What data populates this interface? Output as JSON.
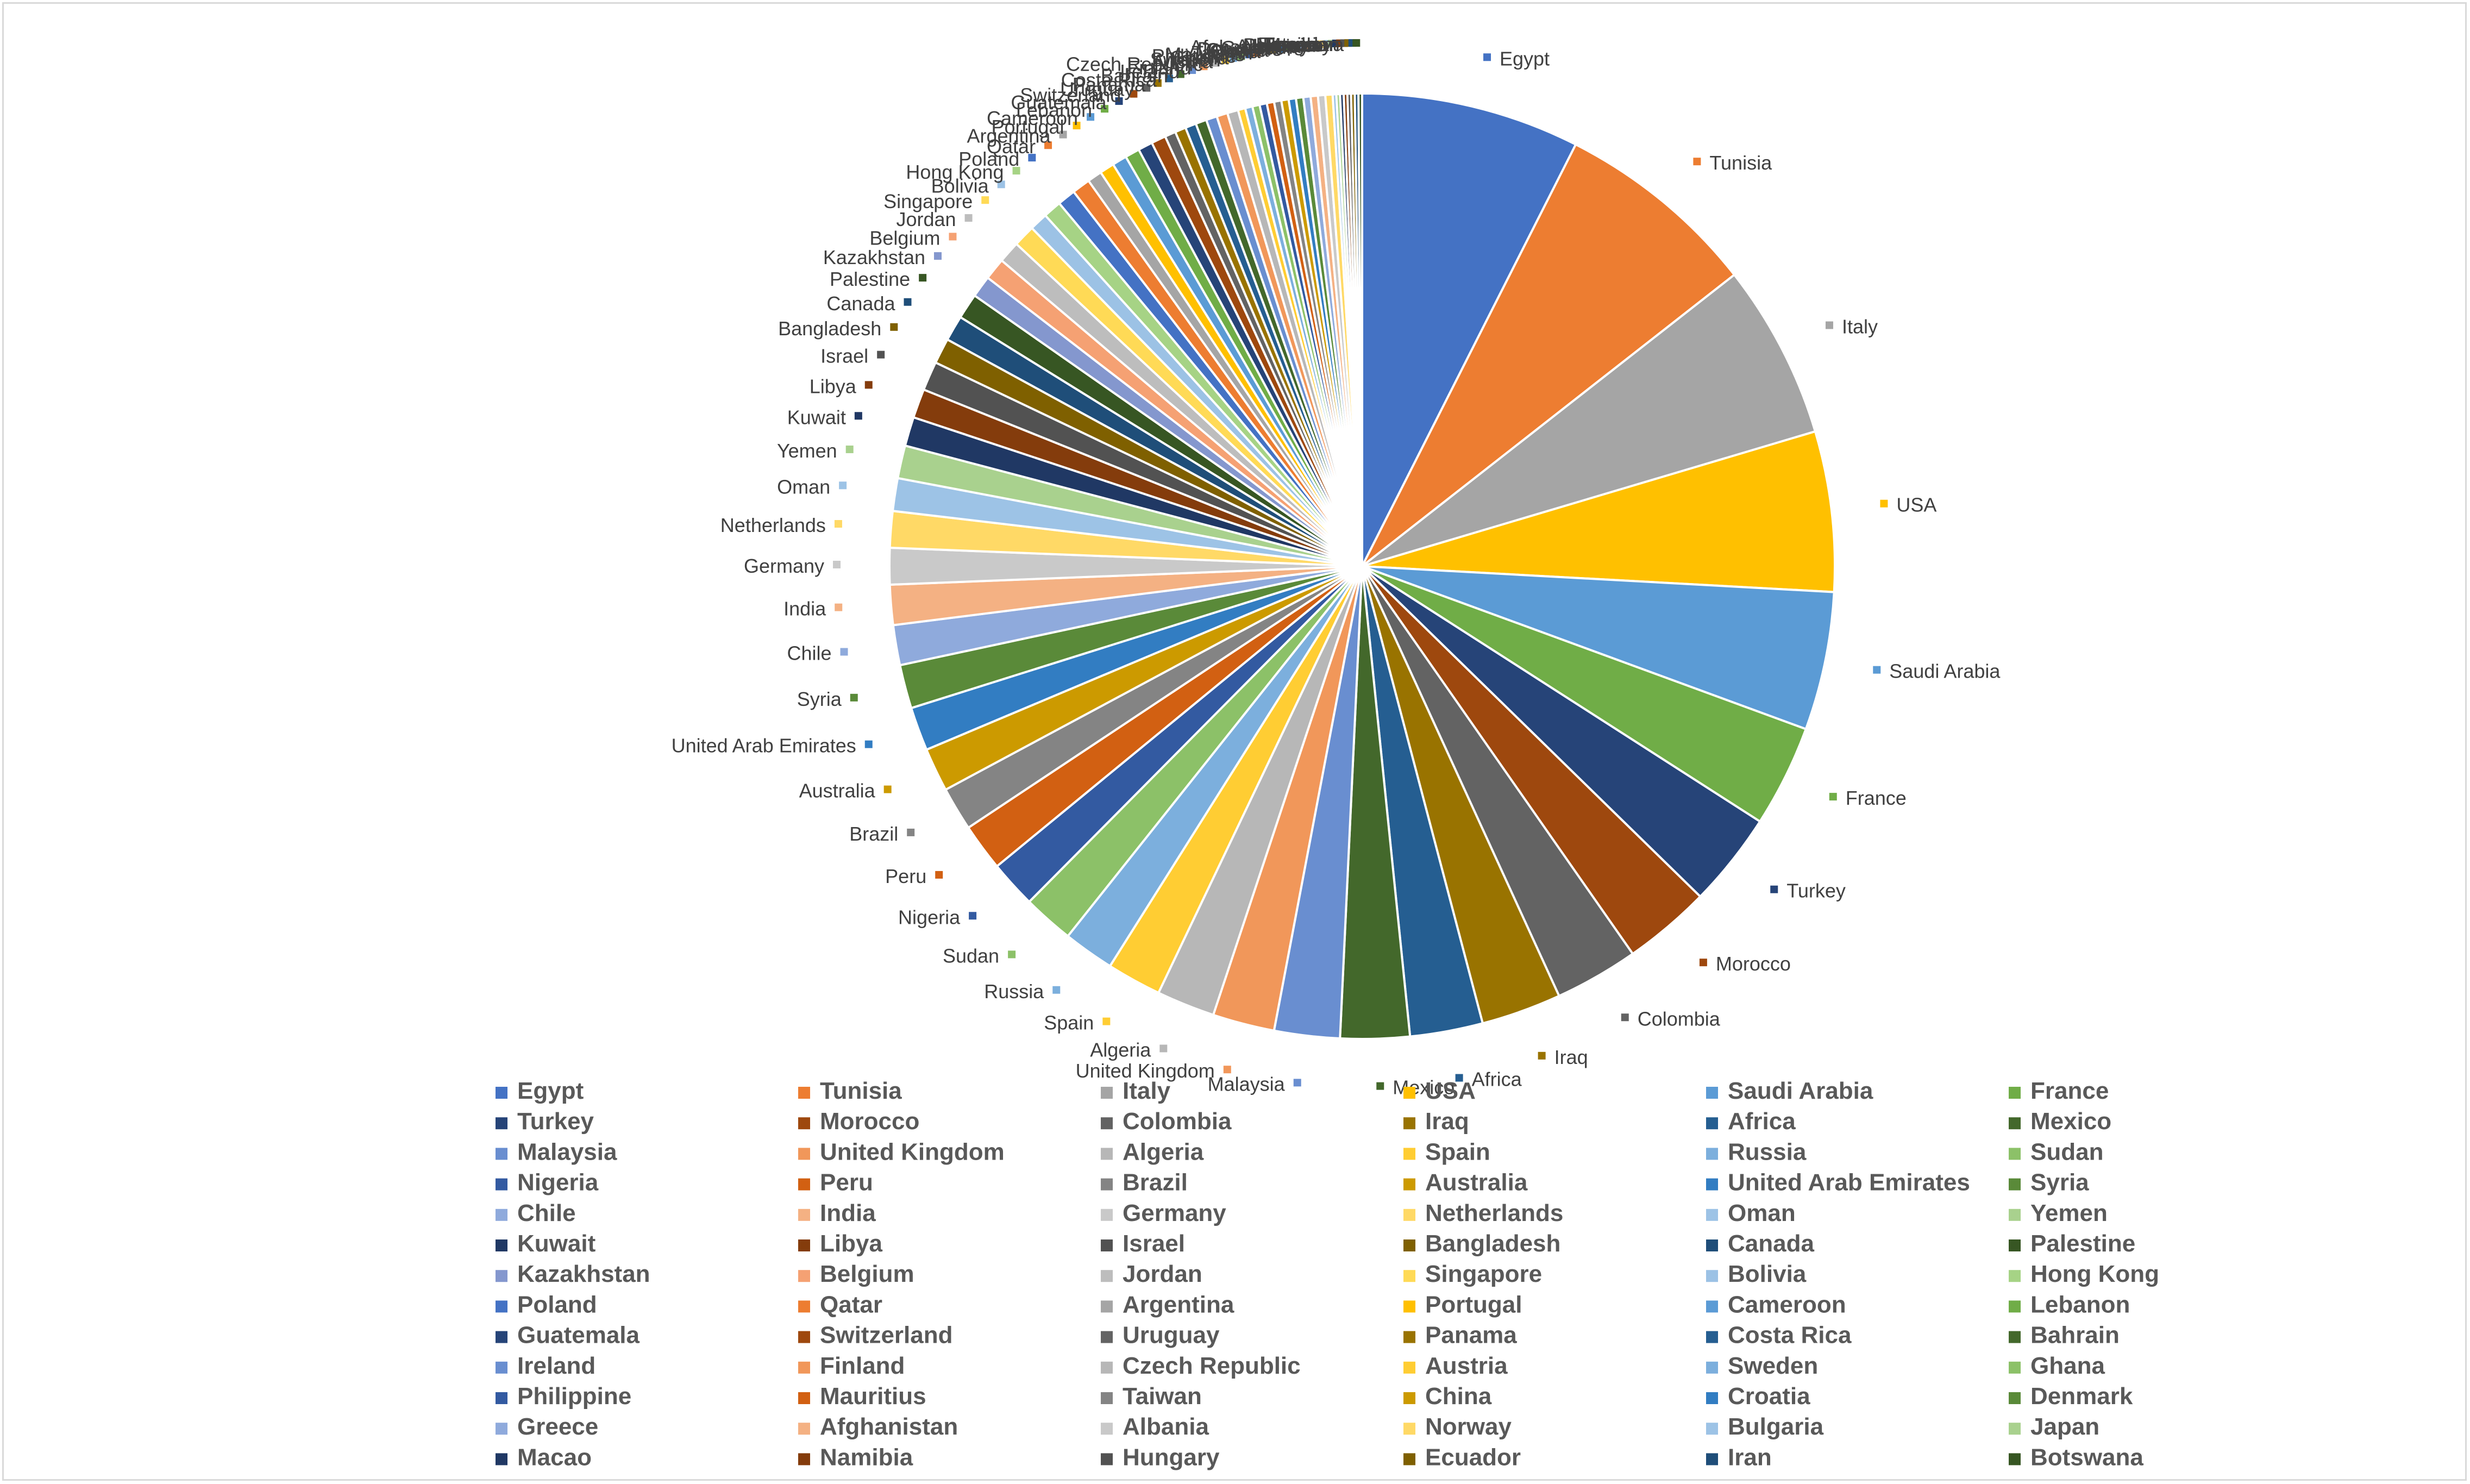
{
  "chart_data": {
    "type": "pie",
    "title": "",
    "legend_position": "bottom",
    "categories": [
      "Egypt",
      "Tunisia",
      "Italy",
      "USA",
      "Saudi Arabia",
      "France",
      "Turkey",
      "Morocco",
      "Colombia",
      "Iraq",
      "Africa",
      "Mexico",
      "Malaysia",
      "United Kingdom",
      "Algeria",
      "Spain",
      "Russia",
      "Sudan",
      "Nigeria",
      "Peru",
      "Brazil",
      "Australia",
      "United Arab Emirates",
      "Syria",
      "Chile",
      "India",
      "Germany",
      "Netherlands",
      "Oman",
      "Yemen",
      "Kuwait",
      "Libya",
      "Israel",
      "Bangladesh",
      "Canada",
      "Palestine",
      "Kazakhstan",
      "Belgium",
      "Jordan",
      "Singapore",
      "Bolivia",
      "Hong Kong",
      "Poland",
      "Qatar",
      "Argentina",
      "Portugal",
      "Cameroon",
      "Lebanon",
      "Guatemala",
      "Switzerland",
      "Uruguay",
      "Panama",
      "Costa Rica",
      "Bahrain",
      "Ireland",
      "Finland",
      "Czech Republic",
      "Austria",
      "Sweden",
      "Ghana",
      "Philippine",
      "Mauritius",
      "Taiwan",
      "China",
      "Croatia",
      "Denmark",
      "Greece",
      "Afghanistan",
      "Albania",
      "Norway",
      "Bulgaria",
      "Japan",
      "Macao",
      "Namibia",
      "Hungary",
      "Ecuador",
      "Iran",
      "Botswana"
    ],
    "values": [
      60,
      56,
      48,
      44,
      38,
      28,
      26,
      24,
      23,
      22,
      20,
      19,
      18,
      17,
      16,
      15,
      14,
      14,
      13,
      13,
      12,
      12,
      12,
      12,
      11,
      11,
      10,
      10,
      9,
      9,
      8,
      8,
      8,
      7,
      7,
      7,
      6,
      6,
      6,
      6,
      5,
      5,
      5,
      5,
      4,
      4,
      4,
      4,
      4,
      4,
      3,
      3,
      3,
      3,
      3,
      3,
      3,
      2,
      2,
      2,
      2,
      2,
      2,
      2,
      2,
      2,
      2,
      2,
      2,
      2,
      1,
      1,
      1,
      1,
      1,
      1,
      1,
      1
    ],
    "colors": [
      "#4472C4",
      "#ED7D31",
      "#A5A5A5",
      "#FFC000",
      "#5B9BD5",
      "#70AD47",
      "#264478",
      "#9E480E",
      "#636363",
      "#997300",
      "#255E91",
      "#43682B",
      "#698ED0",
      "#F1975A",
      "#B7B7B7",
      "#FFCD33",
      "#7CAFDD",
      "#8CC168",
      "#335AA1",
      "#D26012",
      "#848484",
      "#CC9A00",
      "#327DC2",
      "#5A8A39",
      "#8FAADC",
      "#F4B183",
      "#C9C9C9",
      "#FFD966",
      "#9DC3E6",
      "#A9D18E",
      "#203864",
      "#843C0C",
      "#525252",
      "#7F6000",
      "#1F4E79",
      "#375623",
      "#8497CE",
      "#F5A173",
      "#BDBDBD",
      "#FFDA56",
      "#9CC2E5",
      "#A6D385"
    ]
  }
}
